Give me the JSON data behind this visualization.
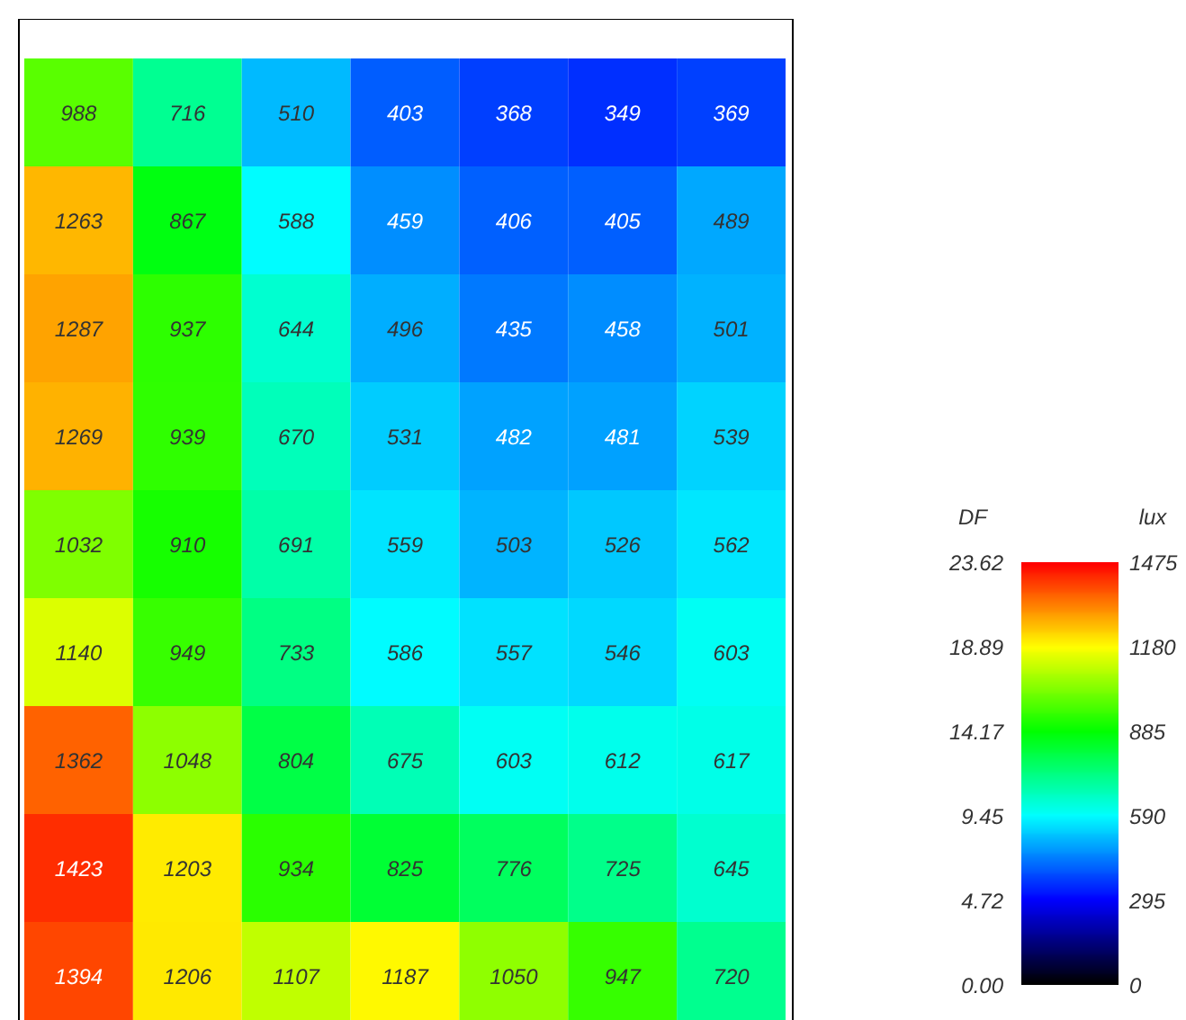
{
  "chart_data": {
    "type": "heatmap",
    "categories": [
      null,
      null,
      null,
      null,
      null,
      null,
      null
    ],
    "y_categories": [
      null,
      null,
      null,
      null,
      null,
      null,
      null,
      null,
      null
    ],
    "cells": [
      [
        988,
        716,
        510,
        403,
        368,
        349,
        369
      ],
      [
        1263,
        867,
        588,
        459,
        406,
        405,
        489
      ],
      [
        1287,
        937,
        644,
        496,
        435,
        458,
        501
      ],
      [
        1269,
        939,
        670,
        531,
        482,
        481,
        539
      ],
      [
        1032,
        910,
        691,
        559,
        503,
        526,
        562
      ],
      [
        1140,
        949,
        733,
        586,
        557,
        546,
        603
      ],
      [
        1362,
        1048,
        804,
        675,
        603,
        612,
        617
      ],
      [
        1423,
        1203,
        934,
        825,
        776,
        725,
        645
      ],
      [
        1394,
        1206,
        1107,
        1187,
        1050,
        947,
        720
      ]
    ],
    "data_labels": true,
    "clim": [
      0,
      1475
    ],
    "cticks": [
      0,
      295,
      590,
      885,
      1180,
      1475
    ],
    "clabel": "lux",
    "annotations": [
      "DF",
      "23.62",
      "18.89",
      "14.17",
      "9.45",
      "4.72",
      "0.00"
    ]
  }
}
